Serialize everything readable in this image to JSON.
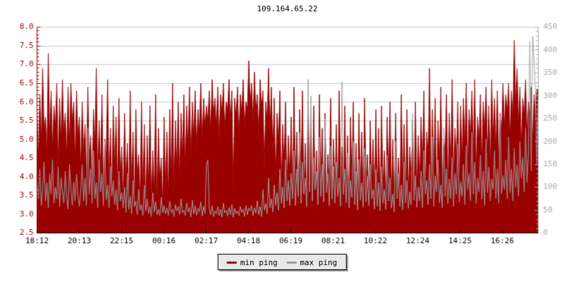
{
  "chart_data": {
    "type": "line",
    "title": "109.164.65.22",
    "x_tick_labels": [
      "18:12",
      "20:13",
      "22:15",
      "00:16",
      "02:17",
      "04:18",
      "06:19",
      "08:21",
      "10:22",
      "12:24",
      "14:25",
      "16:26"
    ],
    "left_axis": {
      "min": 2.5,
      "max": 8.0,
      "step": 0.5,
      "color": "#990000",
      "labels": [
        "8.0",
        "7.5",
        "7.0",
        "6.5",
        "6.0",
        "5.5",
        "5.0",
        "4.5",
        "4.0",
        "3.5",
        "3.0",
        "2.5"
      ]
    },
    "right_axis": {
      "min": 0,
      "max": 450,
      "step": 50,
      "color": "#aaaaaa",
      "labels": [
        "450",
        "400",
        "350",
        "300",
        "250",
        "200",
        "150",
        "100",
        "50",
        "0"
      ]
    },
    "grid": true,
    "grid_color": "#c8c8c8",
    "bottom_axis_color": "#000000",
    "x_label_color": "#000000",
    "legend": {
      "position": "bottom-center",
      "items": [
        {
          "label": "min ping",
          "color": "#990000"
        },
        {
          "label": "max ping",
          "color": "#a0a0a0"
        }
      ]
    },
    "series": [
      {
        "name": "min ping",
        "axis": "left",
        "style": "filled-area",
        "color": "#990000",
        "values": [
          5.8,
          4.4,
          6.2,
          4.9,
          6.9,
          5.2,
          5.6,
          4.6,
          7.3,
          5.0,
          6.3,
          4.7,
          5.9,
          5.3,
          6.5,
          4.3,
          6.1,
          4.9,
          6.6,
          5.1,
          5.7,
          4.5,
          6.4,
          4.8,
          6.5,
          5.4,
          6.0,
          4.4,
          6.3,
          5.0,
          5.6,
          4.2,
          6.0,
          4.6,
          5.4,
          3.9,
          6.4,
          4.3,
          5.1,
          3.6,
          5.8,
          4.8,
          6.9,
          3.8,
          5.5,
          4.1,
          6.2,
          3.5,
          5.0,
          4.4,
          6.6,
          3.7,
          5.3,
          3.4,
          5.9,
          4.2,
          5.6,
          3.6,
          6.1,
          3.9,
          4.8,
          3.3,
          5.7,
          3.8,
          4.9,
          3.2,
          6.3,
          3.6,
          5.2,
          3.1,
          5.8,
          3.9,
          4.6,
          3.3,
          6.0,
          3.5,
          5.4,
          3.0,
          5.1,
          3.7,
          5.9,
          3.2,
          4.7,
          3.5,
          6.2,
          3.1,
          5.3,
          3.8,
          4.5,
          3.2,
          5.6,
          3.6,
          5.2,
          3.4,
          5.8,
          3.9,
          6.5,
          3.5,
          5.5,
          4.2,
          6.0,
          3.8,
          5.7,
          4.5,
          6.2,
          4.1,
          5.9,
          4.8,
          6.4,
          4.4,
          6.0,
          5.0,
          6.3,
          4.7,
          5.8,
          5.2,
          6.5,
          4.9,
          6.1,
          5.3,
          5.9,
          5.5,
          6.3,
          5.1,
          6.6,
          5.6,
          6.1,
          5.3,
          6.4,
          4.9,
          6.2,
          5.7,
          6.5,
          5.2,
          6.0,
          5.8,
          6.6,
          5.4,
          6.3,
          3.6,
          6.1,
          5.6,
          6.4,
          5.0,
          6.2,
          5.7,
          6.6,
          5.3,
          6.0,
          5.8,
          7.1,
          5.9,
          6.5,
          5.4,
          6.8,
          5.7,
          6.2,
          5.1,
          6.6,
          5.8,
          6.3,
          4.2,
          6.0,
          5.5,
          6.9,
          5.2,
          6.4,
          4.6,
          6.1,
          3.8,
          5.7,
          4.9,
          6.3,
          3.5,
          5.4,
          4.3,
          6.0,
          3.6,
          5.1,
          3.9,
          5.6,
          3.4,
          6.4,
          3.8,
          5.2,
          3.1,
          5.8,
          4.0,
          6.3,
          3.5,
          4.9,
          3.2,
          6.0,
          3.7,
          5.5,
          3.0,
          5.9,
          3.6,
          4.7,
          3.3,
          6.2,
          3.9,
          5.3,
          3.1,
          5.7,
          3.5,
          4.6,
          3.8,
          6.1,
          3.2,
          5.0,
          3.6,
          5.4,
          3.2,
          6.3,
          3.8,
          4.8,
          3.3,
          5.9,
          3.5,
          5.1,
          3.0,
          5.6,
          3.9,
          6.0,
          3.4,
          4.9,
          3.1,
          5.7,
          3.6,
          5.2,
          3.3,
          6.1,
          3.8,
          4.6,
          3.2,
          5.5,
          3.7,
          5.0,
          3.4,
          5.8,
          3.5,
          5.3,
          3.1,
          5.9,
          3.7,
          4.7,
          3.2,
          5.6,
          3.9,
          6.0,
          3.4,
          5.0,
          3.1,
          5.7,
          3.6,
          4.5,
          3.3,
          6.2,
          3.8,
          5.4,
          3.2,
          5.8,
          3.5,
          4.8,
          3.9,
          5.5,
          3.3,
          6.0,
          3.6,
          5.1,
          3.8,
          5.6,
          4.2,
          6.3,
          3.5,
          5.2,
          4.5,
          6.9,
          3.7,
          5.8,
          4.0,
          6.1,
          3.4,
          5.5,
          4.3,
          6.4,
          3.8,
          5.0,
          4.6,
          6.2,
          3.6,
          5.7,
          4.1,
          6.6,
          3.9,
          5.3,
          4.4,
          6.0,
          3.7,
          5.9,
          4.4,
          6.1,
          4.8,
          6.5,
          4.2,
          5.8,
          5.0,
          6.3,
          4.5,
          6.6,
          4.1,
          5.6,
          4.9,
          6.2,
          4.3,
          6.0,
          5.2,
          6.4,
          4.6,
          5.9,
          4.2,
          6.6,
          5.0,
          6.1,
          4.7,
          6.3,
          4.4,
          5.7,
          5.1,
          6.5,
          5.3,
          6.2,
          5.7,
          6.5,
          5.0,
          6.3,
          5.5,
          7.65,
          5.9,
          6.9,
          5.4,
          6.4,
          4.8,
          6.1,
          5.6,
          6.6,
          5.1,
          6.0,
          5.7,
          6.4,
          4.9,
          6.2,
          5.5,
          6.35,
          6.3
        ]
      },
      {
        "name": "max ping",
        "axis": "right",
        "style": "line",
        "color": "#a0a0a0",
        "values": [
          115,
          75,
          140,
          60,
          95,
          155,
          70,
          110,
          55,
          130,
          85,
          160,
          65,
          100,
          75,
          145,
          58,
          120,
          90,
          65,
          135,
          78,
          52,
          150,
          95,
          60,
          112,
          70,
          128,
          82,
          58,
          95,
          150,
          70,
          120,
          60,
          230,
          85,
          140,
          65,
          180,
          75,
          110,
          55,
          160,
          90,
          130,
          60,
          200,
          72,
          105,
          55,
          145,
          80,
          115,
          62,
          95,
          50,
          135,
          70,
          88,
          55,
          100,
          45,
          130,
          52,
          80,
          42,
          115,
          58,
          70,
          40,
          95,
          50,
          62,
          38,
          105,
          48,
          75,
          42,
          58,
          36,
          88,
          46,
          68,
          40,
          52,
          38,
          78,
          44,
          60,
          42,
          55,
          38,
          70,
          45,
          52,
          36,
          62,
          48,
          58,
          40,
          75,
          44,
          50,
          38,
          66,
          46,
          56,
          35,
          72,
          42,
          60,
          39,
          54,
          46,
          68,
          37,
          58,
          43,
          150,
          160,
          52,
          40,
          60,
          36,
          48,
          42,
          58,
          38,
          52,
          35,
          65,
          44,
          50,
          37,
          56,
          40,
          62,
          34,
          54,
          42,
          48,
          38,
          58,
          45,
          52,
          36,
          60,
          40,
          55,
          48,
          60,
          38,
          55,
          44,
          70,
          40,
          58,
          36,
          95,
          50,
          64,
          42,
          120,
          55,
          75,
          46,
          105,
          60,
          88,
          50,
          140,
          65,
          100,
          55,
          160,
          70,
          115,
          60,
          130,
          75,
          180,
          60,
          140,
          80,
          220,
          65,
          155,
          85,
          120,
          58,
          336,
          90,
          300,
          70,
          165,
          95,
          135,
          62,
          210,
          80,
          150,
          68,
          250,
          88,
          130,
          60,
          190,
          75,
          145,
          65,
          155,
          80,
          120,
          58,
          330,
          85,
          140,
          66,
          175,
          55,
          115,
          78,
          200,
          62,
          135,
          50,
          160,
          72,
          110,
          56,
          185,
          68,
          125,
          60,
          150,
          75,
          95,
          52,
          140,
          58,
          110,
          48,
          145,
          65,
          95,
          52,
          170,
          70,
          120,
          55,
          85,
          46,
          200,
          75,
          130,
          58,
          105,
          50,
          155,
          66,
          115,
          54,
          90,
          62,
          260,
          72,
          125,
          56,
          100,
          70,
          135,
          55,
          180,
          85,
          115,
          62,
          150,
          75,
          210,
          58,
          125,
          90,
          160,
          66,
          105,
          55,
          230,
          80,
          140,
          64,
          118,
          75,
          165,
          58,
          130,
          85,
          195,
          68,
          112,
          80,
          150,
          62,
          190,
          95,
          130,
          70,
          220,
          85,
          155,
          65,
          120,
          90,
          170,
          74,
          135,
          60,
          205,
          88,
          145,
          70,
          118,
          95,
          180,
          75,
          140,
          65,
          255,
          85,
          125,
          95,
          160,
          75,
          210,
          88,
          140,
          70,
          185,
          100,
          150,
          80,
          200,
          120,
          165,
          90,
          230,
          110,
          175,
          420,
          135,
          430,
          380,
          300,
          150,
          310
        ]
      }
    ]
  }
}
